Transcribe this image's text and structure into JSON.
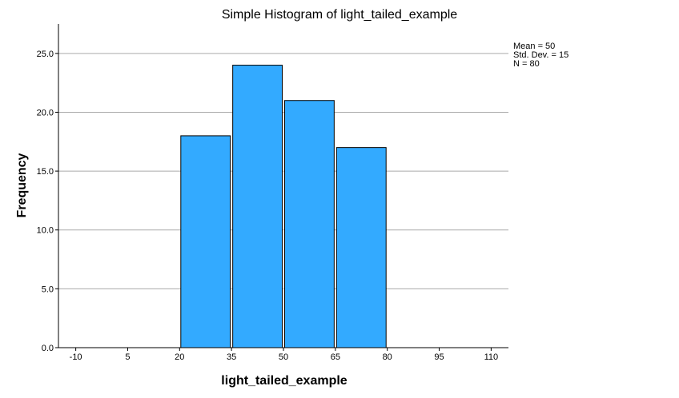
{
  "chart_data": {
    "type": "bar",
    "title": "Simple Histogram of light_tailed_example",
    "xlabel": "light_tailed_example",
    "ylabel": "Frequency",
    "bins": [
      {
        "start": 20,
        "end": 35,
        "count": 18
      },
      {
        "start": 35,
        "end": 50,
        "count": 24
      },
      {
        "start": 50,
        "end": 65,
        "count": 21
      },
      {
        "start": 65,
        "end": 80,
        "count": 17
      }
    ],
    "xlim": [
      -15,
      115
    ],
    "ylim": [
      0,
      27.5
    ],
    "x_ticks": [
      "-10",
      "5",
      "20",
      "35",
      "50",
      "65",
      "80",
      "95",
      "110"
    ],
    "y_ticks": [
      "0.0",
      "5.0",
      "10.0",
      "15.0",
      "20.0",
      "25.0"
    ],
    "grid": "horizontal",
    "stats": [
      "Mean = 50",
      "Std. Dev. = 15",
      "N = 80"
    ],
    "bar_color": "#33aaff"
  }
}
